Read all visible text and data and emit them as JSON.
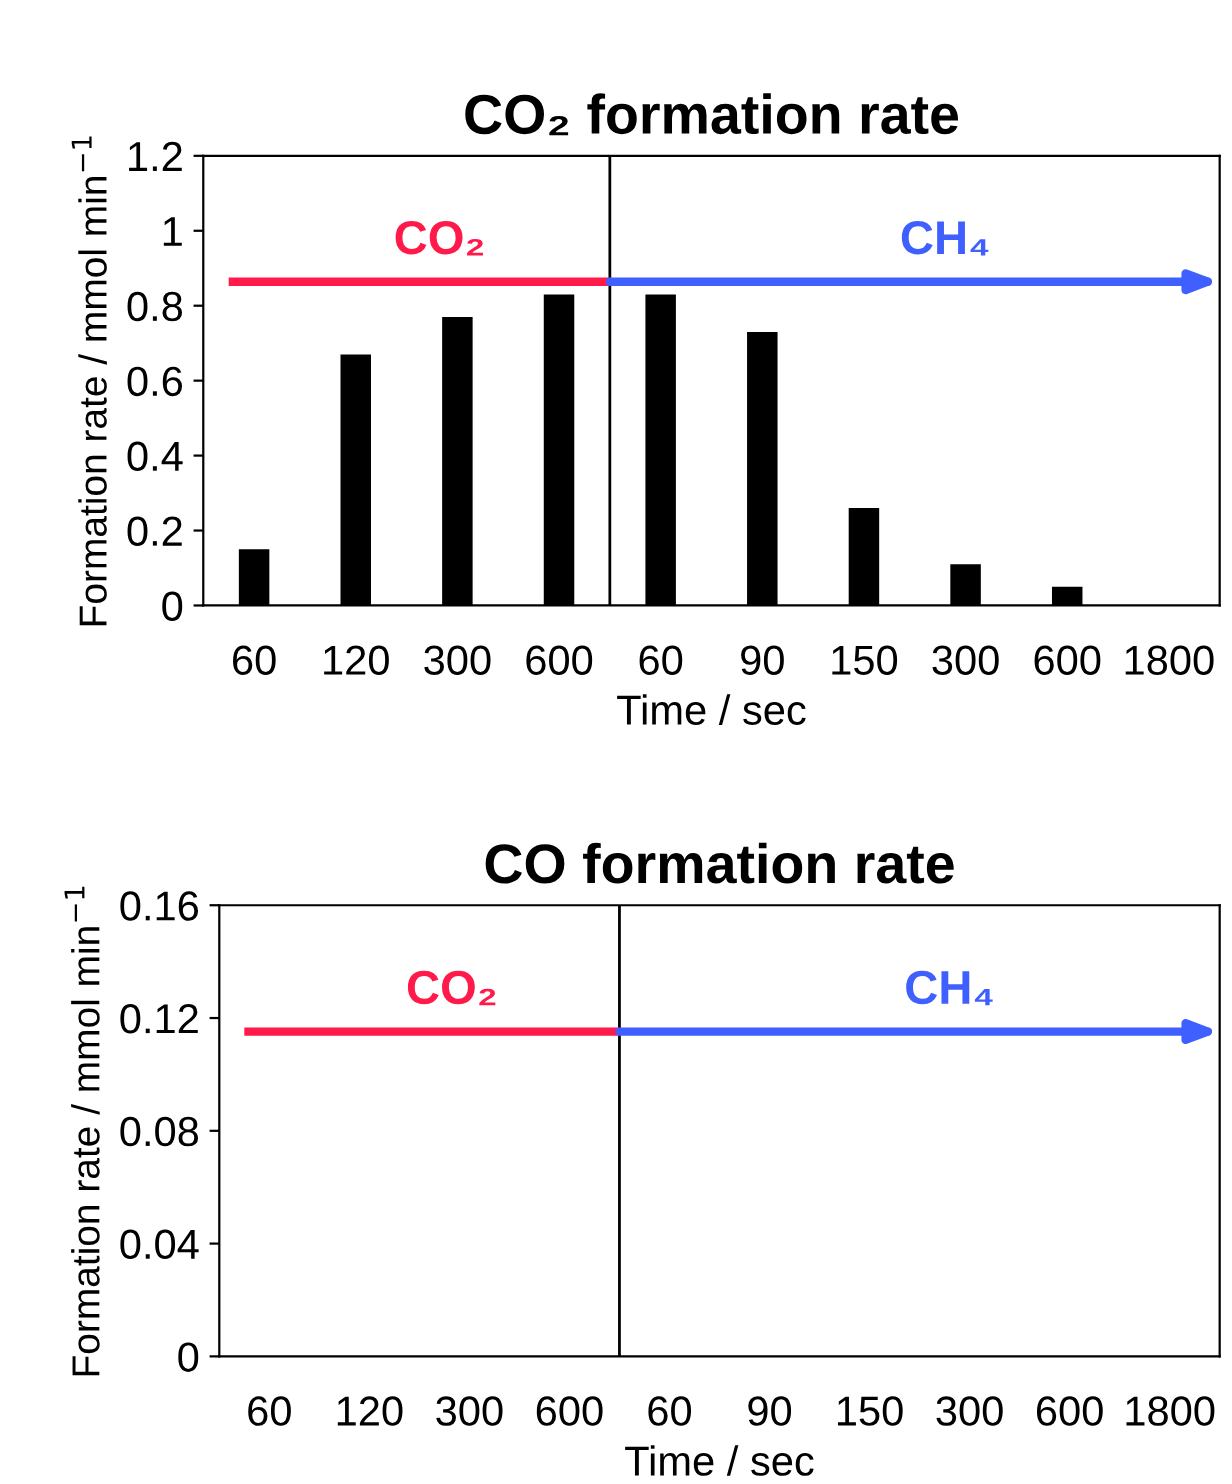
{
  "chart_data": [
    {
      "type": "bar",
      "title": "CO₂ formation rate",
      "xlabel": "Time / sec",
      "ylabel": "Formation rate / mmol min$^{−1}$",
      "categories": [
        "60",
        "120",
        "300",
        "600",
        "60",
        "90",
        "150",
        "300",
        "600",
        "1800"
      ],
      "values": [
        0.15,
        0.67,
        0.77,
        0.83,
        0.83,
        0.73,
        0.26,
        0.11,
        0.05,
        0
      ],
      "color": "#000000",
      "ylim": [
        0,
        1.2
      ],
      "yticks": [
        0,
        {
          "value": 0.2,
          "label": "0.2"
        },
        {
          "value": 0.4,
          "label": "0.4"
        },
        {
          "value": 0.6,
          "label": "0.6"
        },
        {
          "value": 0.8,
          "label": "0.8"
        },
        1,
        {
          "value": 1.2,
          "label": "1.2"
        }
      ],
      "annotations": [
        "CO₂",
        "CH₄"
      ]
    },
    {
      "type": "bar",
      "title": "CO formation rate",
      "xlabel": "Time / sec",
      "ylabel": "Formation rate / mmol min$^{−1}$",
      "categories": [
        "60",
        "120",
        "300",
        "600",
        "60",
        "90",
        "150",
        "300",
        "600",
        "1800"
      ],
      "values": [
        0,
        0,
        0,
        0,
        0,
        0,
        0,
        0,
        0,
        0
      ],
      "color": "#000000",
      "ylim": [
        0,
        0.16
      ],
      "yticks": [
        0,
        {
          "value": 0.04,
          "label": "0.04"
        },
        {
          "value": 0.08,
          "label": "0.08"
        },
        {
          "value": 0.12,
          "label": "0.12"
        },
        {
          "value": 0.16,
          "label": "0.16"
        }
      ],
      "annotations": [
        "CO₂",
        "CH₄"
      ]
    }
  ]
}
